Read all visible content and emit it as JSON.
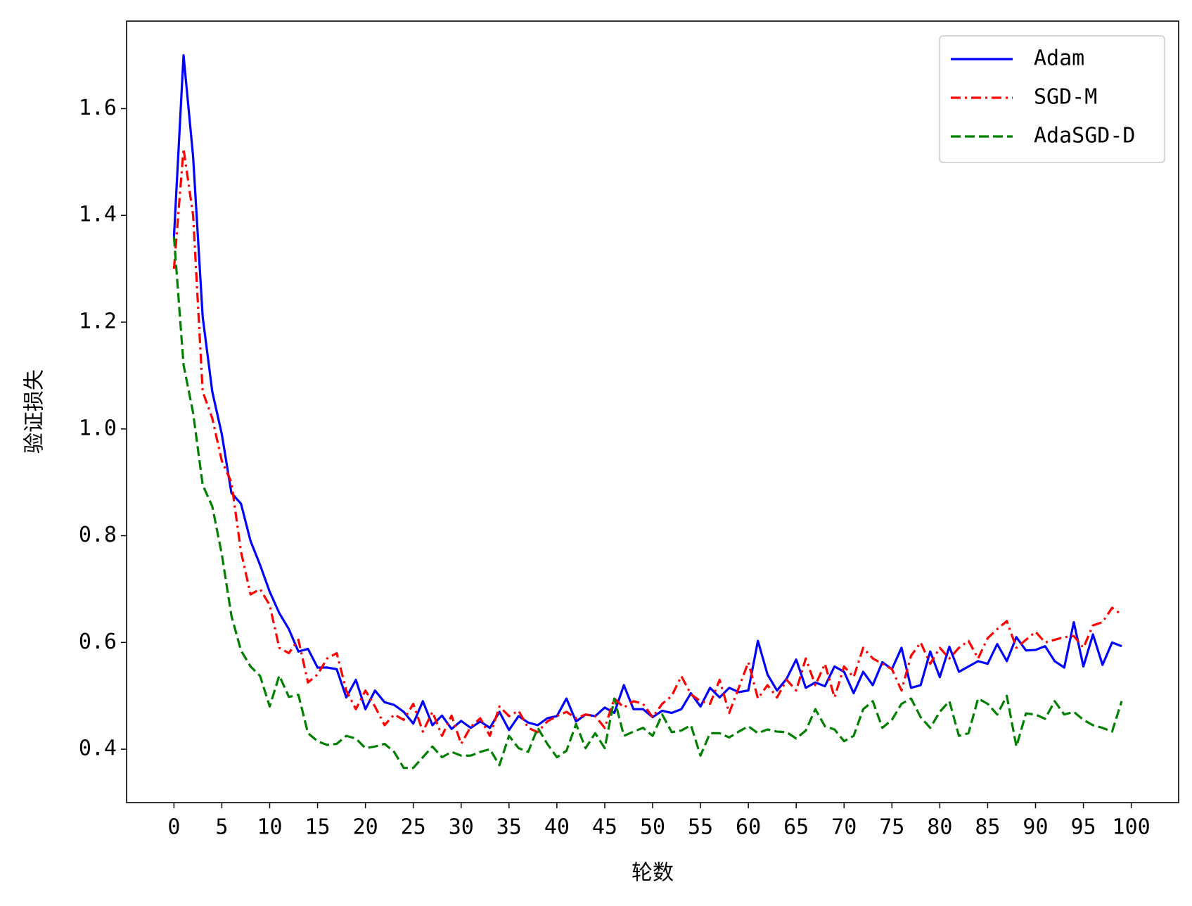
{
  "chart_data": {
    "type": "line",
    "x_label": "轮数",
    "y_label": "验证损失",
    "x": [
      0,
      1,
      2,
      3,
      4,
      5,
      6,
      7,
      8,
      9,
      10,
      11,
      12,
      13,
      14,
      15,
      16,
      17,
      18,
      19,
      20,
      21,
      22,
      23,
      24,
      25,
      26,
      27,
      28,
      29,
      30,
      31,
      32,
      33,
      34,
      35,
      36,
      37,
      38,
      39,
      40,
      41,
      42,
      43,
      44,
      45,
      46,
      47,
      48,
      49,
      50,
      51,
      52,
      53,
      54,
      55,
      56,
      57,
      58,
      59,
      60,
      61,
      62,
      63,
      64,
      65,
      66,
      67,
      68,
      69,
      70,
      71,
      72,
      73,
      74,
      75,
      76,
      77,
      78,
      79,
      80,
      81,
      82,
      83,
      84,
      85,
      86,
      87,
      88,
      89,
      90,
      91,
      92,
      93,
      94,
      95,
      96,
      97,
      98,
      99
    ],
    "series": [
      {
        "name": "Adam",
        "color": "#0000ff",
        "dash": "solid",
        "values": [
          1.36,
          1.7,
          1.51,
          1.21,
          1.07,
          0.99,
          0.88,
          0.86,
          0.79,
          0.745,
          0.695,
          0.655,
          0.625,
          0.583,
          0.588,
          0.553,
          0.553,
          0.55,
          0.497,
          0.53,
          0.475,
          0.51,
          0.488,
          0.483,
          0.47,
          0.448,
          0.49,
          0.445,
          0.463,
          0.438,
          0.453,
          0.44,
          0.452,
          0.44,
          0.47,
          0.436,
          0.462,
          0.45,
          0.445,
          0.458,
          0.462,
          0.495,
          0.452,
          0.465,
          0.462,
          0.478,
          0.468,
          0.52,
          0.475,
          0.475,
          0.46,
          0.472,
          0.468,
          0.475,
          0.505,
          0.48,
          0.515,
          0.497,
          0.515,
          0.507,
          0.51,
          0.603,
          0.54,
          0.51,
          0.532,
          0.568,
          0.515,
          0.525,
          0.518,
          0.555,
          0.545,
          0.505,
          0.545,
          0.52,
          0.563,
          0.55,
          0.59,
          0.515,
          0.52,
          0.583,
          0.535,
          0.592,
          0.545,
          0.555,
          0.565,
          0.56,
          0.597,
          0.565,
          0.61,
          0.585,
          0.586,
          0.593,
          0.565,
          0.553,
          0.638,
          0.555,
          0.615,
          0.558,
          0.6,
          0.593
        ]
      },
      {
        "name": "SGD-M",
        "color": "#ff0000",
        "dash": "dashdot",
        "values": [
          1.3,
          1.525,
          1.4,
          1.07,
          1.02,
          0.94,
          0.9,
          0.77,
          0.69,
          0.7,
          0.67,
          0.59,
          0.58,
          0.605,
          0.525,
          0.54,
          0.57,
          0.58,
          0.51,
          0.475,
          0.51,
          0.48,
          0.445,
          0.465,
          0.455,
          0.485,
          0.433,
          0.47,
          0.425,
          0.463,
          0.41,
          0.442,
          0.458,
          0.425,
          0.48,
          0.462,
          0.472,
          0.44,
          0.432,
          0.452,
          0.462,
          0.47,
          0.458,
          0.465,
          0.462,
          0.44,
          0.495,
          0.478,
          0.49,
          0.485,
          0.46,
          0.485,
          0.5,
          0.537,
          0.503,
          0.49,
          0.485,
          0.53,
          0.468,
          0.515,
          0.563,
          0.495,
          0.52,
          0.497,
          0.53,
          0.51,
          0.57,
          0.52,
          0.56,
          0.497,
          0.555,
          0.535,
          0.59,
          0.57,
          0.56,
          0.55,
          0.51,
          0.575,
          0.6,
          0.56,
          0.59,
          0.57,
          0.59,
          0.603,
          0.57,
          0.608,
          0.625,
          0.64,
          0.59,
          0.605,
          0.62,
          0.6,
          0.605,
          0.61,
          0.612,
          0.59,
          0.632,
          0.638,
          0.665,
          0.652
        ]
      },
      {
        "name": "AdaSGD-D",
        "color": "#008000",
        "dash": "dashed",
        "values": [
          1.36,
          1.12,
          1.03,
          0.895,
          0.855,
          0.765,
          0.65,
          0.585,
          0.555,
          0.537,
          0.48,
          0.538,
          0.498,
          0.502,
          0.43,
          0.415,
          0.408,
          0.41,
          0.425,
          0.42,
          0.402,
          0.405,
          0.41,
          0.395,
          0.365,
          0.365,
          0.385,
          0.405,
          0.385,
          0.395,
          0.388,
          0.388,
          0.395,
          0.4,
          0.37,
          0.425,
          0.402,
          0.395,
          0.44,
          0.41,
          0.385,
          0.397,
          0.447,
          0.402,
          0.43,
          0.402,
          0.495,
          0.425,
          0.433,
          0.44,
          0.425,
          0.465,
          0.432,
          0.435,
          0.445,
          0.388,
          0.43,
          0.43,
          0.422,
          0.433,
          0.443,
          0.43,
          0.437,
          0.433,
          0.432,
          0.42,
          0.435,
          0.475,
          0.443,
          0.437,
          0.415,
          0.425,
          0.475,
          0.49,
          0.44,
          0.455,
          0.485,
          0.495,
          0.46,
          0.44,
          0.47,
          0.49,
          0.425,
          0.43,
          0.495,
          0.485,
          0.465,
          0.5,
          0.405,
          0.467,
          0.465,
          0.457,
          0.49,
          0.465,
          0.47,
          0.455,
          0.445,
          0.44,
          0.433,
          0.49
        ]
      }
    ],
    "xlim": [
      -4.95,
      104.95
    ],
    "ylim": [
      0.3,
      1.764
    ],
    "xticks": [
      0,
      5,
      10,
      15,
      20,
      25,
      30,
      35,
      40,
      45,
      50,
      55,
      60,
      65,
      70,
      75,
      80,
      85,
      90,
      95,
      100
    ],
    "yticks": [
      0.4,
      0.6,
      0.8,
      {
        "value": 1,
        "label": "1.0"
      },
      1.2,
      1.4,
      1.6
    ],
    "grid": false,
    "legend": "upper right"
  }
}
